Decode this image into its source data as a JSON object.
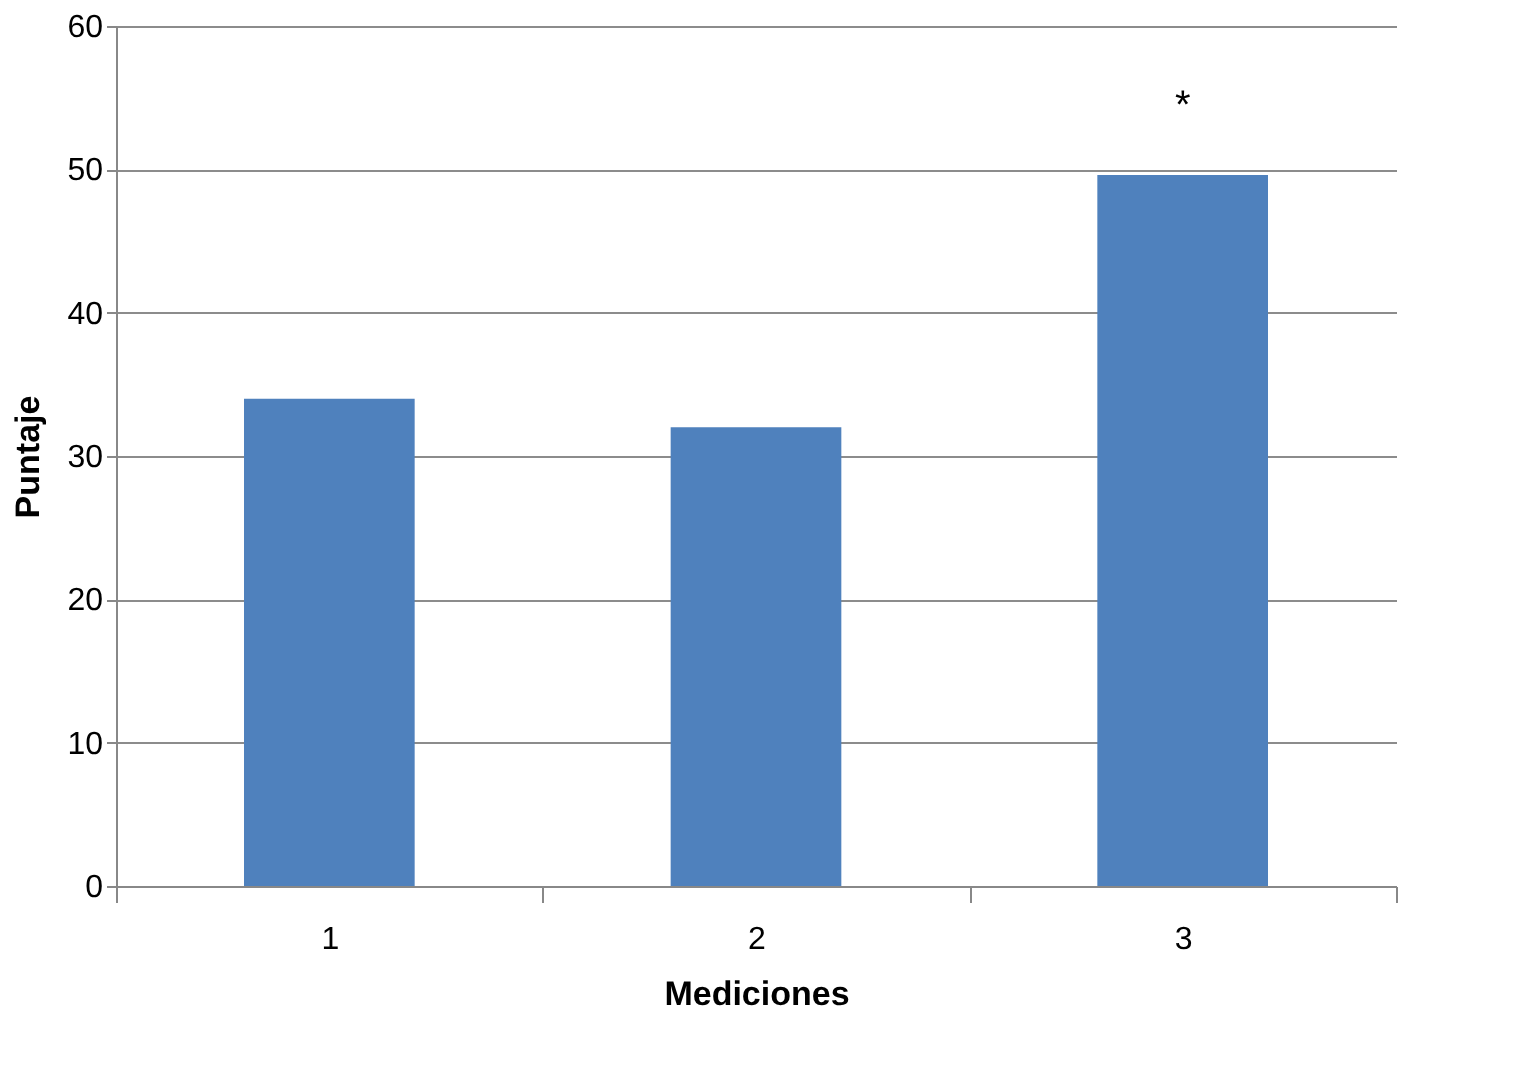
{
  "chart_data": {
    "type": "bar",
    "xlabel": "Mediciones",
    "ylabel": "Puntaje",
    "categories": [
      "1",
      "2",
      "3"
    ],
    "values": [
      34,
      32,
      49.6
    ],
    "color": "#4f81bd",
    "ylim": [
      0,
      60
    ],
    "yticks": [
      0,
      10,
      20,
      30,
      40,
      50,
      60
    ],
    "grid": "y",
    "annotations": [
      "*"
    ]
  }
}
